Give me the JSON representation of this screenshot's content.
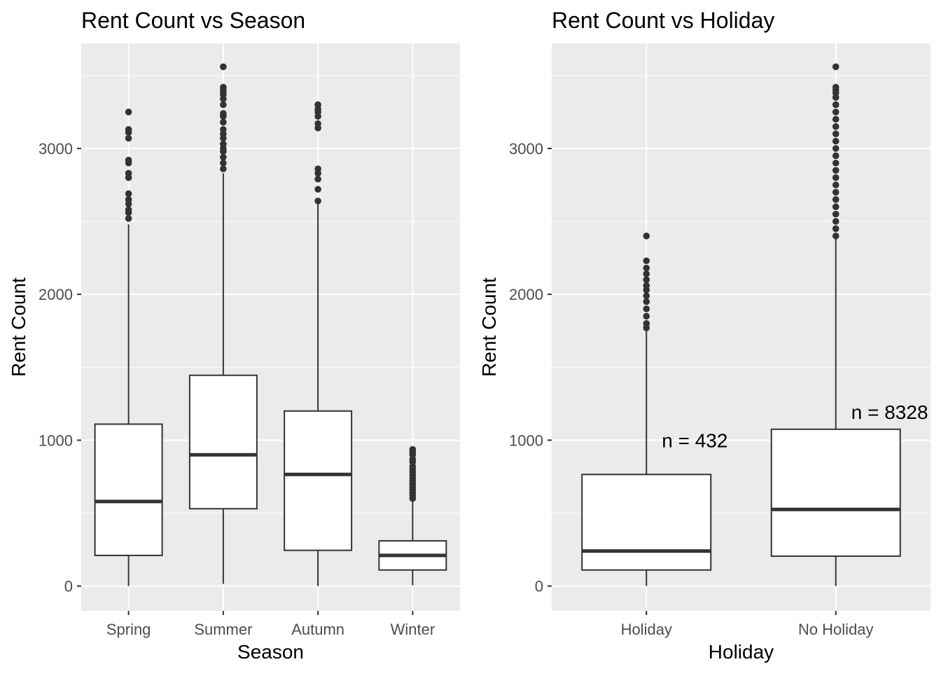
{
  "chart_data": [
    {
      "type": "boxplot",
      "title": "Rent Count vs Season",
      "xlabel": "Season",
      "ylabel": "Rent Count",
      "ylim": [
        -170,
        3720
      ],
      "yticks": [
        0,
        1000,
        2000,
        3000
      ],
      "grid": true,
      "categories": [
        "Spring",
        "Summer",
        "Autumn",
        "Winter"
      ],
      "boxes": [
        {
          "category": "Spring",
          "min": 0,
          "q1": 210,
          "median": 580,
          "q3": 1110,
          "max": 2480,
          "outliers": [
            2520,
            2560,
            2580,
            2620,
            2650,
            2690,
            2800,
            2830,
            2900,
            2920,
            3070,
            3110,
            3130,
            3250
          ]
        },
        {
          "category": "Summer",
          "min": 15,
          "q1": 530,
          "median": 900,
          "q3": 1445,
          "max": 2830,
          "outliers": [
            2860,
            2900,
            2940,
            2980,
            3000,
            3030,
            3070,
            3100,
            3130,
            3180,
            3220,
            3240,
            3300,
            3340,
            3370,
            3390,
            3410,
            3420,
            3560
          ]
        },
        {
          "category": "Autumn",
          "min": 0,
          "q1": 245,
          "median": 765,
          "q3": 1200,
          "max": 2630,
          "outliers": [
            2640,
            2720,
            2790,
            2830,
            2860,
            3140,
            3170,
            3220,
            3250,
            3270,
            3300
          ]
        },
        {
          "category": "Winter",
          "min": 5,
          "q1": 110,
          "median": 210,
          "q3": 310,
          "max": 590,
          "outliers": [
            600,
            620,
            640,
            660,
            680,
            700,
            720,
            740,
            760,
            780,
            800,
            820,
            850,
            870,
            900,
            920,
            937
          ]
        }
      ]
    },
    {
      "type": "boxplot",
      "title": "Rent Count vs Holiday",
      "xlabel": "Holiday",
      "ylabel": "Rent Count",
      "ylim": [
        -170,
        3720
      ],
      "yticks": [
        0,
        1000,
        2000,
        3000
      ],
      "grid": true,
      "categories": [
        "Holiday",
        "No Holiday"
      ],
      "boxes": [
        {
          "category": "Holiday",
          "min": 0,
          "q1": 110,
          "median": 240,
          "q3": 765,
          "max": 1750,
          "outliers": [
            1770,
            1800,
            1850,
            1900,
            1950,
            1990,
            2030,
            2060,
            2100,
            2140,
            2180,
            2230,
            2400
          ]
        },
        {
          "category": "No Holiday",
          "min": 0,
          "q1": 205,
          "median": 525,
          "q3": 1075,
          "max": 2380,
          "outliers": [
            2400,
            2450,
            2500,
            2550,
            2600,
            2650,
            2700,
            2750,
            2800,
            2850,
            2900,
            2950,
            3000,
            3050,
            3100,
            3150,
            3200,
            3250,
            3300,
            3350,
            3380,
            3400,
            3420,
            3560
          ]
        }
      ],
      "annotations": [
        {
          "category": "Holiday",
          "text": "n =  432",
          "y": 1000
        },
        {
          "category": "No Holiday",
          "text": "n =  8328",
          "y": 1195
        }
      ]
    }
  ]
}
